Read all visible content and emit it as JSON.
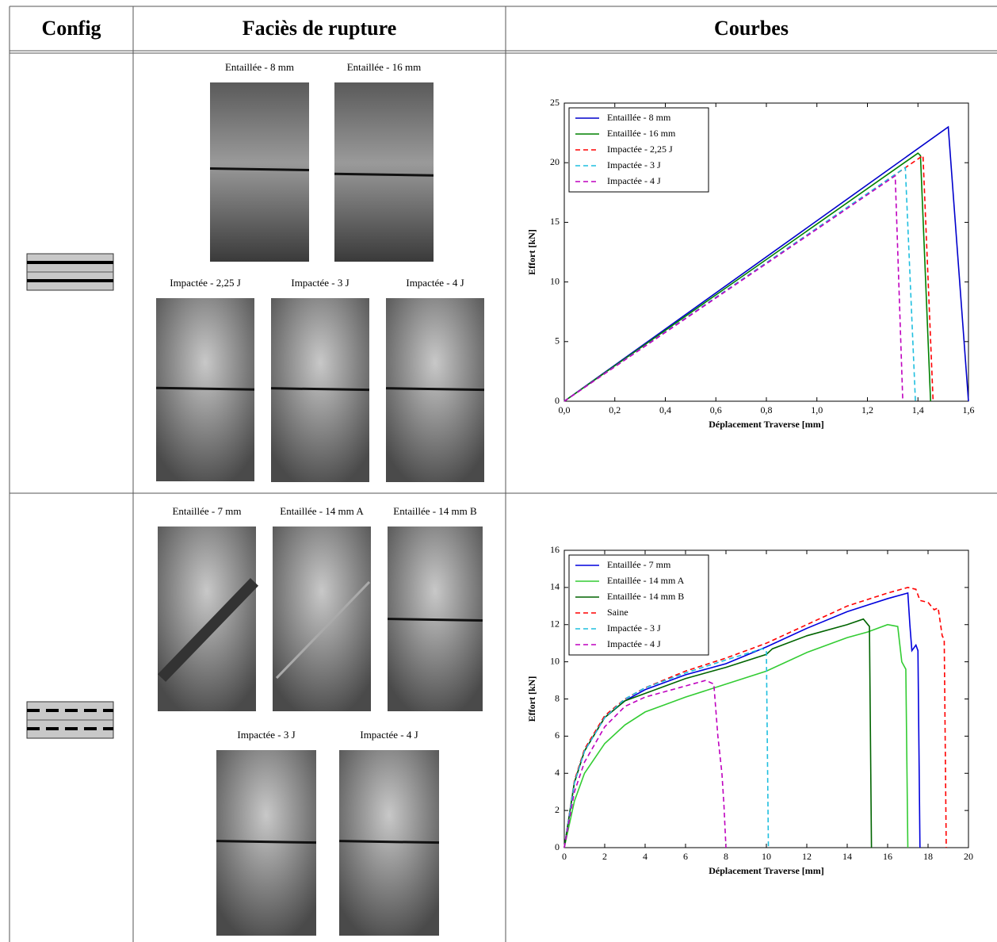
{
  "table": {
    "headers": [
      "Config",
      "Faciès de rupture",
      "Courbes"
    ],
    "rows": [
      {
        "photos": [
          "Entaillée - 8 mm",
          "Entaillée - 16 mm",
          "Impactée - 2,25 J",
          "Impactée - 3 J",
          "Impactée - 4 J"
        ]
      },
      {
        "photos": [
          "Entaillée - 7 mm",
          "Entaillée - 14 mm A",
          "Entaillée - 14 mm B",
          "Impactée - 3 J",
          "Impactée - 4 J"
        ]
      }
    ]
  },
  "chart_data": [
    {
      "type": "line",
      "xlabel": "Déplacement Traverse [mm]",
      "ylabel": "Effort [kN]",
      "legend": "upper left",
      "xlim": [
        0,
        1.6
      ],
      "xticks": [
        {
          "value": 0,
          "label": "0,0"
        },
        {
          "value": 0.2,
          "label": "0,2"
        },
        {
          "value": 0.4,
          "label": "0,4"
        },
        {
          "value": 0.6,
          "label": "0,6"
        },
        {
          "value": 0.8,
          "label": "0,8"
        },
        {
          "value": 1.0,
          "label": "1,0"
        },
        {
          "value": 1.2,
          "label": "1,2"
        },
        {
          "value": 1.4,
          "label": "1,4"
        },
        {
          "value": 1.6,
          "label": "1,6"
        }
      ],
      "ylim": [
        0,
        25
      ],
      "yticks": [
        0,
        5,
        10,
        15,
        20,
        25
      ],
      "series": [
        {
          "name": "Entaillée - 8 mm",
          "color": "#0000cc",
          "linestyle": "solid",
          "x": [
            0,
            1.52,
            1.6
          ],
          "values": [
            0,
            23,
            0
          ]
        },
        {
          "name": "Entaillée - 16 mm",
          "color": "#008000",
          "linestyle": "solid",
          "x": [
            0,
            1.4,
            1.41,
            1.45
          ],
          "values": [
            0,
            20.8,
            20.6,
            0
          ]
        },
        {
          "name": "Impactée - 2,25 J",
          "color": "#ff0000",
          "linestyle": "dashed",
          "x": [
            0,
            1.42,
            1.46
          ],
          "values": [
            0,
            20.6,
            0
          ]
        },
        {
          "name": "Impactée - 3 J",
          "color": "#1fbfdf",
          "linestyle": "dashed",
          "x": [
            0,
            1.35,
            1.39
          ],
          "values": [
            0,
            19.6,
            0
          ]
        },
        {
          "name": "Impactée - 4 J",
          "color": "#bf00bf",
          "linestyle": "dashed",
          "x": [
            0,
            1.31,
            1.34
          ],
          "values": [
            0,
            18.9,
            0
          ]
        }
      ]
    },
    {
      "type": "line",
      "xlabel": "Déplacement Traverse [mm]",
      "ylabel": "Effort [kN]",
      "legend": "upper left",
      "xlim": [
        0,
        20
      ],
      "xticks": [
        0,
        2,
        4,
        6,
        8,
        10,
        12,
        14,
        16,
        18,
        20
      ],
      "ylim": [
        0,
        16
      ],
      "yticks": [
        0,
        2,
        4,
        6,
        8,
        10,
        12,
        14,
        16
      ],
      "series": [
        {
          "name": "Entaillée - 7 mm",
          "color": "#0000dd",
          "linestyle": "solid",
          "x": [
            0,
            0.5,
            1,
            2,
            3,
            4,
            6,
            8,
            10,
            12,
            14,
            16,
            17,
            17.1,
            17.2,
            17.4,
            17.5,
            17.6
          ],
          "values": [
            0,
            3.5,
            5.2,
            7.0,
            7.9,
            8.5,
            9.3,
            9.9,
            10.8,
            11.8,
            12.7,
            13.4,
            13.7,
            12,
            10.6,
            10.9,
            10.6,
            0
          ]
        },
        {
          "name": "Entaillée - 14 mm A",
          "color": "#33cc33",
          "linestyle": "solid",
          "x": [
            0,
            0.5,
            1,
            2,
            3,
            4,
            6,
            8,
            10,
            12,
            14,
            15,
            16,
            16.5,
            16.7,
            16.9,
            17.0
          ],
          "values": [
            0,
            2.5,
            4,
            5.6,
            6.6,
            7.3,
            8.1,
            8.8,
            9.5,
            10.5,
            11.3,
            11.6,
            12.0,
            11.9,
            10,
            9.6,
            0
          ]
        },
        {
          "name": "Entaillée - 14 mm B",
          "color": "#006400",
          "linestyle": "solid",
          "x": [
            0,
            0.5,
            1,
            2,
            3,
            4,
            6,
            8,
            10,
            10.3,
            12,
            14,
            14.8,
            15.1,
            15.2
          ],
          "values": [
            0,
            3.5,
            5.2,
            7,
            7.9,
            8.3,
            9.1,
            9.7,
            10.4,
            10.7,
            11.4,
            12,
            12.3,
            11.9,
            0
          ]
        },
        {
          "name": "Saine",
          "color": "#ff0000",
          "linestyle": "dashed",
          "x": [
            0,
            0.5,
            1,
            2,
            3,
            4,
            6,
            8,
            10,
            12,
            14,
            16,
            17,
            17.4,
            17.6,
            18,
            18.3,
            18.5,
            18.7,
            18.8,
            18.9
          ],
          "values": [
            0,
            3.6,
            5.3,
            7.1,
            8.0,
            8.6,
            9.5,
            10.2,
            11,
            12,
            13,
            13.7,
            14.0,
            13.9,
            13.3,
            13.2,
            12.8,
            12.9,
            11.4,
            11.2,
            0
          ]
        },
        {
          "name": "Impactée - 3 J",
          "color": "#1fbfdf",
          "linestyle": "dashed",
          "x": [
            0,
            0.5,
            1,
            2,
            3,
            4,
            6,
            8,
            9.8,
            10.0,
            10.1
          ],
          "values": [
            0,
            3.5,
            5.2,
            7,
            8,
            8.6,
            9.4,
            10.1,
            10.7,
            10.6,
            0
          ]
        },
        {
          "name": "Impactée - 4 J",
          "color": "#bf00bf",
          "linestyle": "dashed",
          "x": [
            0,
            0.5,
            1,
            2,
            3,
            4,
            5,
            6,
            7,
            7.4,
            7.6,
            7.8,
            7.9,
            8.0
          ],
          "values": [
            0,
            3,
            4.6,
            6.5,
            7.6,
            8.1,
            8.4,
            8.7,
            9.0,
            8.8,
            6,
            4,
            2.3,
            0
          ]
        }
      ]
    }
  ]
}
